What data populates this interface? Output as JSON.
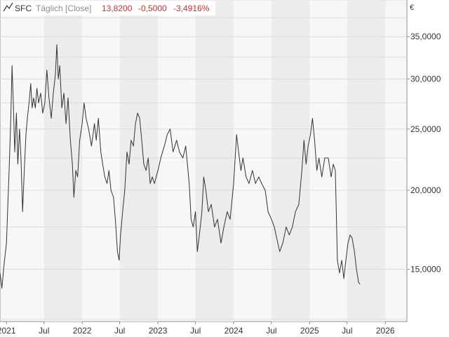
{
  "header": {
    "symbol": "SFC",
    "period": "Täglich [Close]",
    "last": "13,8200",
    "change": "-0,5000",
    "change_pct": "-3,4916%"
  },
  "chart_data": {
    "type": "line",
    "title": "SFC Täglich [Close]",
    "ylabel": "€",
    "y_scale": "log",
    "ylim": [
      12.4,
      40.0
    ],
    "xlim": [
      "2020-12-01",
      "2026-04-15"
    ],
    "y_ticks": [
      15,
      20,
      25,
      30,
      35
    ],
    "y_tick_labels": [
      "15,0000",
      "20,0000",
      "25,0000",
      "30,0000",
      "35,0000"
    ],
    "x_ticks": [
      "2021-01-01",
      "2021-07-01",
      "2022-01-01",
      "2022-07-01",
      "2023-01-01",
      "2023-07-01",
      "2024-01-01",
      "2024-07-01",
      "2025-01-01",
      "2025-07-01",
      "2026-01-01"
    ],
    "x_tick_labels": [
      "2021",
      "Jul",
      "2022",
      "Jul",
      "2023",
      "Jul",
      "2024",
      "Jul",
      "2025",
      "Jul",
      "2026"
    ],
    "grid": true,
    "series": [
      {
        "name": "SFC",
        "color": "#333333",
        "points": [
          [
            "2020-12-01",
            14.8
          ],
          [
            "2020-12-10",
            14.0
          ],
          [
            "2020-12-20",
            15.2
          ],
          [
            "2021-01-01",
            16.5
          ],
          [
            "2021-01-08",
            19.0
          ],
          [
            "2021-01-15",
            22.0
          ],
          [
            "2021-01-22",
            26.0
          ],
          [
            "2021-01-28",
            31.5
          ],
          [
            "2021-02-04",
            27.0
          ],
          [
            "2021-02-10",
            23.0
          ],
          [
            "2021-02-18",
            26.5
          ],
          [
            "2021-02-25",
            22.0
          ],
          [
            "2021-03-05",
            25.0
          ],
          [
            "2021-03-12",
            22.5
          ],
          [
            "2021-03-20",
            18.5
          ],
          [
            "2021-03-28",
            21.5
          ],
          [
            "2021-04-05",
            24.5
          ],
          [
            "2021-04-12",
            26.0
          ],
          [
            "2021-04-20",
            27.5
          ],
          [
            "2021-04-28",
            29.5
          ],
          [
            "2021-05-05",
            27.0
          ],
          [
            "2021-05-12",
            28.0
          ],
          [
            "2021-05-20",
            27.0
          ],
          [
            "2021-05-28",
            29.0
          ],
          [
            "2021-06-05",
            27.5
          ],
          [
            "2021-06-15",
            28.5
          ],
          [
            "2021-06-25",
            26.5
          ],
          [
            "2021-07-05",
            27.5
          ],
          [
            "2021-07-15",
            31.0
          ],
          [
            "2021-07-25",
            28.0
          ],
          [
            "2021-08-05",
            26.0
          ],
          [
            "2021-08-15",
            28.5
          ],
          [
            "2021-08-25",
            30.5
          ],
          [
            "2021-09-01",
            34.0
          ],
          [
            "2021-09-08",
            30.0
          ],
          [
            "2021-09-15",
            31.5
          ],
          [
            "2021-09-25",
            27.0
          ],
          [
            "2021-10-05",
            28.5
          ],
          [
            "2021-10-15",
            25.5
          ],
          [
            "2021-10-25",
            28.0
          ],
          [
            "2021-11-05",
            24.0
          ],
          [
            "2021-11-15",
            22.0
          ],
          [
            "2021-11-22",
            19.5
          ],
          [
            "2021-12-01",
            21.5
          ],
          [
            "2021-12-10",
            21.0
          ],
          [
            "2021-12-20",
            24.0
          ],
          [
            "2022-01-01",
            25.5
          ],
          [
            "2022-01-10",
            27.5
          ],
          [
            "2022-01-20",
            26.0
          ],
          [
            "2022-02-01",
            25.0
          ],
          [
            "2022-02-15",
            23.5
          ],
          [
            "2022-03-01",
            25.5
          ],
          [
            "2022-03-10",
            24.0
          ],
          [
            "2022-03-20",
            26.0
          ],
          [
            "2022-04-01",
            23.0
          ],
          [
            "2022-04-10",
            22.0
          ],
          [
            "2022-04-20",
            21.0
          ],
          [
            "2022-05-01",
            20.5
          ],
          [
            "2022-05-10",
            21.5
          ],
          [
            "2022-05-20",
            20.0
          ],
          [
            "2022-06-01",
            19.5
          ],
          [
            "2022-06-10",
            18.0
          ],
          [
            "2022-06-20",
            16.0
          ],
          [
            "2022-06-28",
            15.5
          ],
          [
            "2022-07-05",
            17.0
          ],
          [
            "2022-07-15",
            18.5
          ],
          [
            "2022-07-25",
            20.0
          ],
          [
            "2022-08-05",
            23.0
          ],
          [
            "2022-08-15",
            22.0
          ],
          [
            "2022-08-25",
            24.0
          ],
          [
            "2022-09-05",
            23.5
          ],
          [
            "2022-09-15",
            25.5
          ],
          [
            "2022-09-25",
            26.5
          ],
          [
            "2022-10-05",
            26.0
          ],
          [
            "2022-10-15",
            24.0
          ],
          [
            "2022-10-25",
            22.0
          ],
          [
            "2022-11-05",
            21.5
          ],
          [
            "2022-11-15",
            22.5
          ],
          [
            "2022-11-25",
            20.5
          ],
          [
            "2022-12-05",
            21.0
          ],
          [
            "2022-12-15",
            20.5
          ],
          [
            "2023-01-01",
            21.5
          ],
          [
            "2023-01-15",
            22.5
          ],
          [
            "2023-02-01",
            23.5
          ],
          [
            "2023-02-15",
            24.5
          ],
          [
            "2023-03-01",
            25.0
          ],
          [
            "2023-03-15",
            23.0
          ],
          [
            "2023-04-01",
            24.0
          ],
          [
            "2023-04-15",
            23.0
          ],
          [
            "2023-05-01",
            22.5
          ],
          [
            "2023-05-15",
            23.5
          ],
          [
            "2023-06-01",
            20.5
          ],
          [
            "2023-06-10",
            18.0
          ],
          [
            "2023-06-20",
            17.5
          ],
          [
            "2023-07-01",
            18.5
          ],
          [
            "2023-07-10",
            16.0
          ],
          [
            "2023-07-20",
            17.0
          ],
          [
            "2023-08-01",
            18.5
          ],
          [
            "2023-08-10",
            21.0
          ],
          [
            "2023-08-20",
            20.0
          ],
          [
            "2023-09-01",
            18.5
          ],
          [
            "2023-09-15",
            19.0
          ],
          [
            "2023-10-01",
            17.5
          ],
          [
            "2023-10-15",
            18.0
          ],
          [
            "2023-11-01",
            16.5
          ],
          [
            "2023-11-15",
            17.5
          ],
          [
            "2023-12-01",
            18.5
          ],
          [
            "2023-12-15",
            18.0
          ],
          [
            "2024-01-01",
            20.5
          ],
          [
            "2024-01-15",
            24.5
          ],
          [
            "2024-01-25",
            23.0
          ],
          [
            "2024-02-05",
            21.5
          ],
          [
            "2024-02-15",
            22.5
          ],
          [
            "2024-03-01",
            21.0
          ],
          [
            "2024-03-15",
            20.5
          ],
          [
            "2024-04-01",
            21.5
          ],
          [
            "2024-04-15",
            20.5
          ],
          [
            "2024-05-01",
            21.0
          ],
          [
            "2024-05-15",
            20.5
          ],
          [
            "2024-06-01",
            20.0
          ],
          [
            "2024-06-15",
            18.5
          ],
          [
            "2024-07-01",
            18.0
          ],
          [
            "2024-07-15",
            17.5
          ],
          [
            "2024-08-01",
            16.5
          ],
          [
            "2024-08-10",
            16.0
          ],
          [
            "2024-08-25",
            16.5
          ],
          [
            "2024-09-10",
            17.5
          ],
          [
            "2024-09-25",
            17.0
          ],
          [
            "2024-10-10",
            17.5
          ],
          [
            "2024-10-25",
            18.5
          ],
          [
            "2024-11-10",
            19.0
          ],
          [
            "2024-11-25",
            21.5
          ],
          [
            "2024-12-05",
            24.0
          ],
          [
            "2024-12-15",
            22.0
          ],
          [
            "2024-12-25",
            23.5
          ],
          [
            "2025-01-05",
            24.5
          ],
          [
            "2025-01-15",
            26.0
          ],
          [
            "2025-01-25",
            24.0
          ],
          [
            "2025-02-05",
            21.5
          ],
          [
            "2025-02-15",
            22.5
          ],
          [
            "2025-03-01",
            21.0
          ],
          [
            "2025-03-15",
            22.5
          ],
          [
            "2025-04-01",
            22.5
          ],
          [
            "2025-04-15",
            21.0
          ],
          [
            "2025-04-25",
            22.0
          ],
          [
            "2025-05-05",
            21.5
          ],
          [
            "2025-05-15",
            15.5
          ],
          [
            "2025-05-25",
            14.8
          ],
          [
            "2025-06-05",
            15.5
          ],
          [
            "2025-06-15",
            14.5
          ],
          [
            "2025-06-25",
            15.5
          ],
          [
            "2025-07-05",
            16.5
          ],
          [
            "2025-07-15",
            17.0
          ],
          [
            "2025-07-25",
            16.8
          ],
          [
            "2025-08-05",
            16.0
          ],
          [
            "2025-08-15",
            15.0
          ],
          [
            "2025-08-25",
            14.3
          ],
          [
            "2025-09-01",
            14.2
          ]
        ]
      }
    ]
  }
}
